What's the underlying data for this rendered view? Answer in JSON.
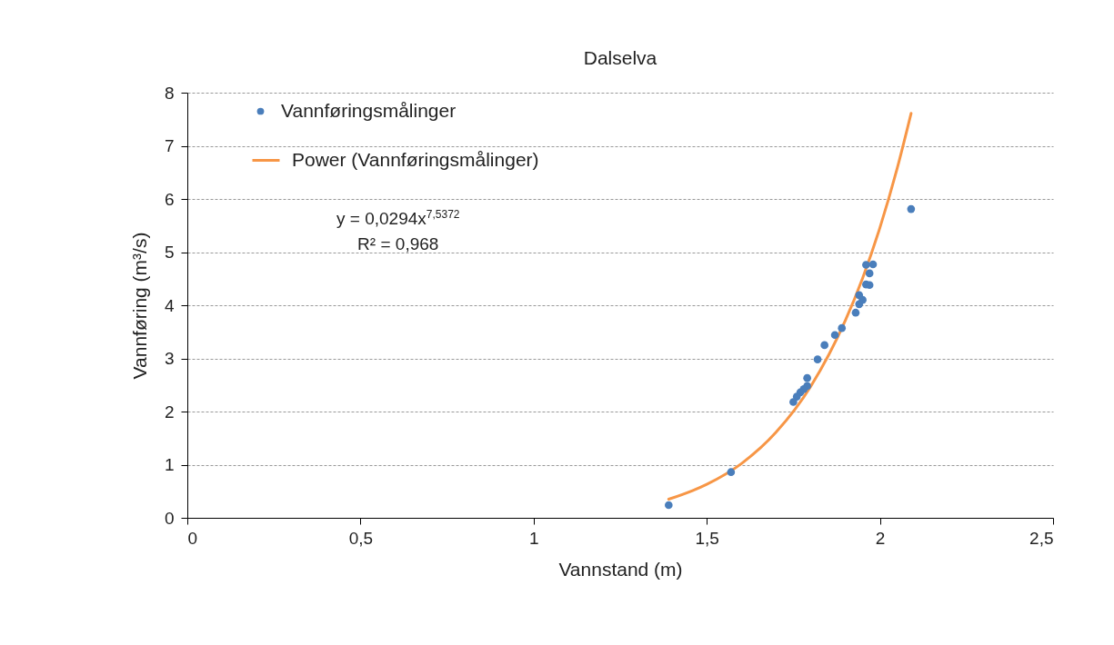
{
  "chart_data": {
    "type": "scatter",
    "title": "Dalselva",
    "xlabel": "Vannstand (m)",
    "ylabel": "Vannføring (m³/s)",
    "xlim": [
      0,
      2.5
    ],
    "xticks": [
      0,
      {
        "value": 0.5,
        "label": "0,5"
      },
      1,
      {
        "value": 1.5,
        "label": "1,5"
      },
      2,
      {
        "value": 2.5,
        "label": "2,5"
      }
    ],
    "ylim": [
      0,
      8
    ],
    "yticks": [
      0,
      1,
      2,
      3,
      4,
      5,
      6,
      7,
      8
    ],
    "grid": "y",
    "legend": "top left",
    "marker": "circle",
    "annotations": [
      "y = 0,0294x$^{7,5372}$",
      "R² = 0,968"
    ],
    "series": [
      {
        "name": "Vannføringsmålinger",
        "color": "#4a7ebb",
        "x": [
          1.39,
          1.57,
          2.09,
          1.96,
          1.98,
          1.97,
          1.96,
          1.97,
          1.94,
          1.95,
          1.94,
          1.93,
          1.89,
          1.87,
          1.84,
          1.82,
          1.79,
          1.79,
          1.78,
          1.77,
          1.76,
          1.75
        ],
        "values": [
          0.24,
          0.86,
          5.81,
          4.76,
          4.77,
          4.6,
          4.39,
          4.38,
          4.19,
          4.1,
          4.02,
          3.86,
          3.57,
          3.44,
          3.25,
          2.98,
          2.63,
          2.48,
          2.42,
          2.36,
          2.28,
          2.18
        ]
      },
      {
        "name": "Power (Vannføringsmålinger)",
        "type": "line",
        "marker": "none",
        "color": "#f79646",
        "x": [
          1.39,
          1.5,
          1.6,
          1.7,
          1.8,
          1.9,
          1.95,
          2.0,
          2.05,
          2.09
        ],
        "values": [
          0.35,
          0.63,
          1.02,
          1.61,
          2.47,
          3.71,
          4.51,
          5.46,
          6.58,
          7.61
        ]
      }
    ]
  }
}
